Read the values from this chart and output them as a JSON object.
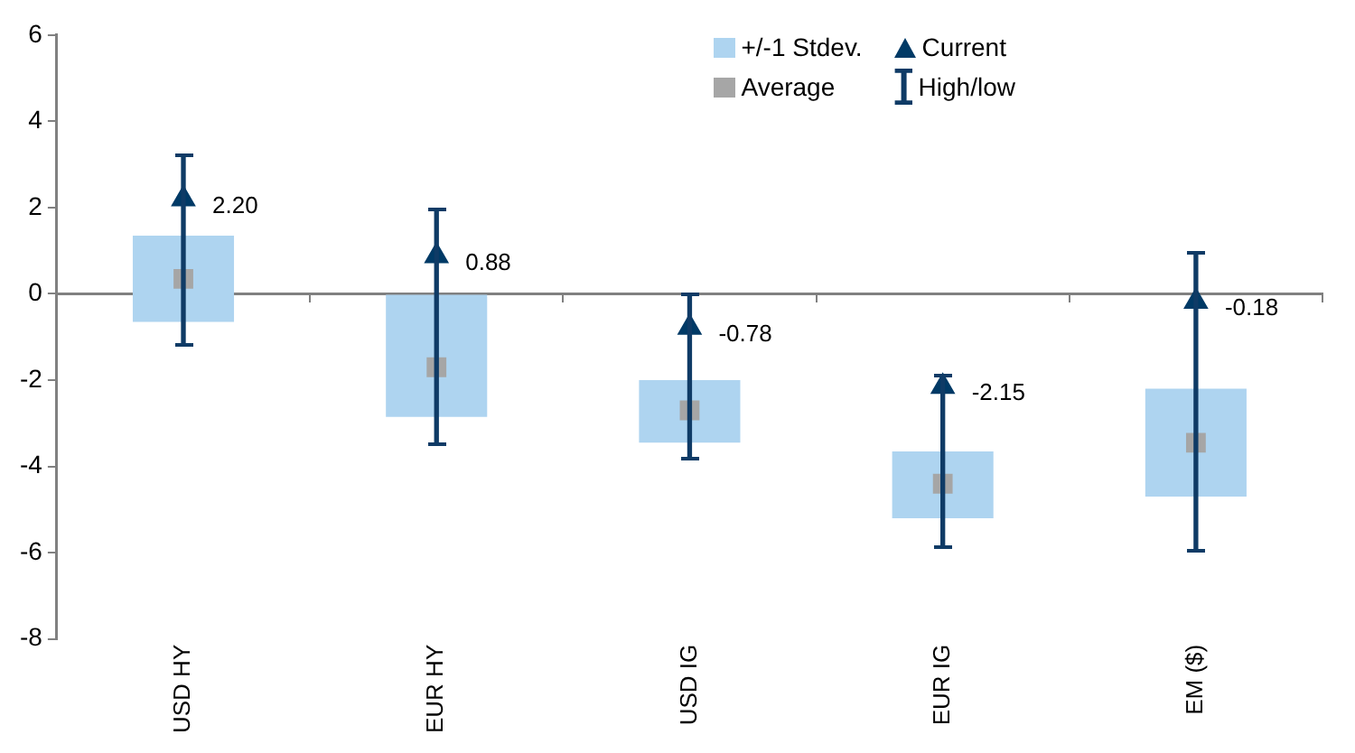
{
  "chart_data": {
    "type": "bar",
    "categories": [
      "USD HY",
      "EUR HY",
      "USD IG",
      "EUR IG",
      "EM ($)"
    ],
    "ylim": [
      -8,
      6
    ],
    "yticks": [
      -8,
      -6,
      -4,
      -2,
      0,
      2,
      4,
      6
    ],
    "legend": "top right",
    "series": [
      {
        "name": "+/-1 Stdev.",
        "color": "#aed4f0",
        "base": [
          -0.65,
          -2.85,
          -3.45,
          -5.2,
          -4.7
        ],
        "values": [
          2.0,
          2.85,
          1.45,
          1.55,
          2.5
        ]
      },
      {
        "name": "Current",
        "type": "scatter",
        "marker": "triangle",
        "color": "#003a66",
        "values": [
          2.2,
          0.88,
          -0.78,
          -2.15,
          -0.18
        ],
        "value_labels": [
          "2.20",
          "0.88",
          "-0.78",
          "-2.15",
          "-0.18"
        ]
      },
      {
        "name": "Average",
        "type": "scatter",
        "marker": "square",
        "color": "#a6a6a6",
        "values": [
          0.35,
          -1.7,
          -2.7,
          -4.4,
          -3.45
        ]
      },
      {
        "name": "High/low",
        "line_style": "solid",
        "color": "#0f3b66",
        "base": [
          -1.2,
          -3.5,
          -3.8,
          -5.85,
          -5.95
        ],
        "values": [
          4.4,
          5.45,
          3.8,
          3.95,
          6.9
        ]
      }
    ]
  }
}
